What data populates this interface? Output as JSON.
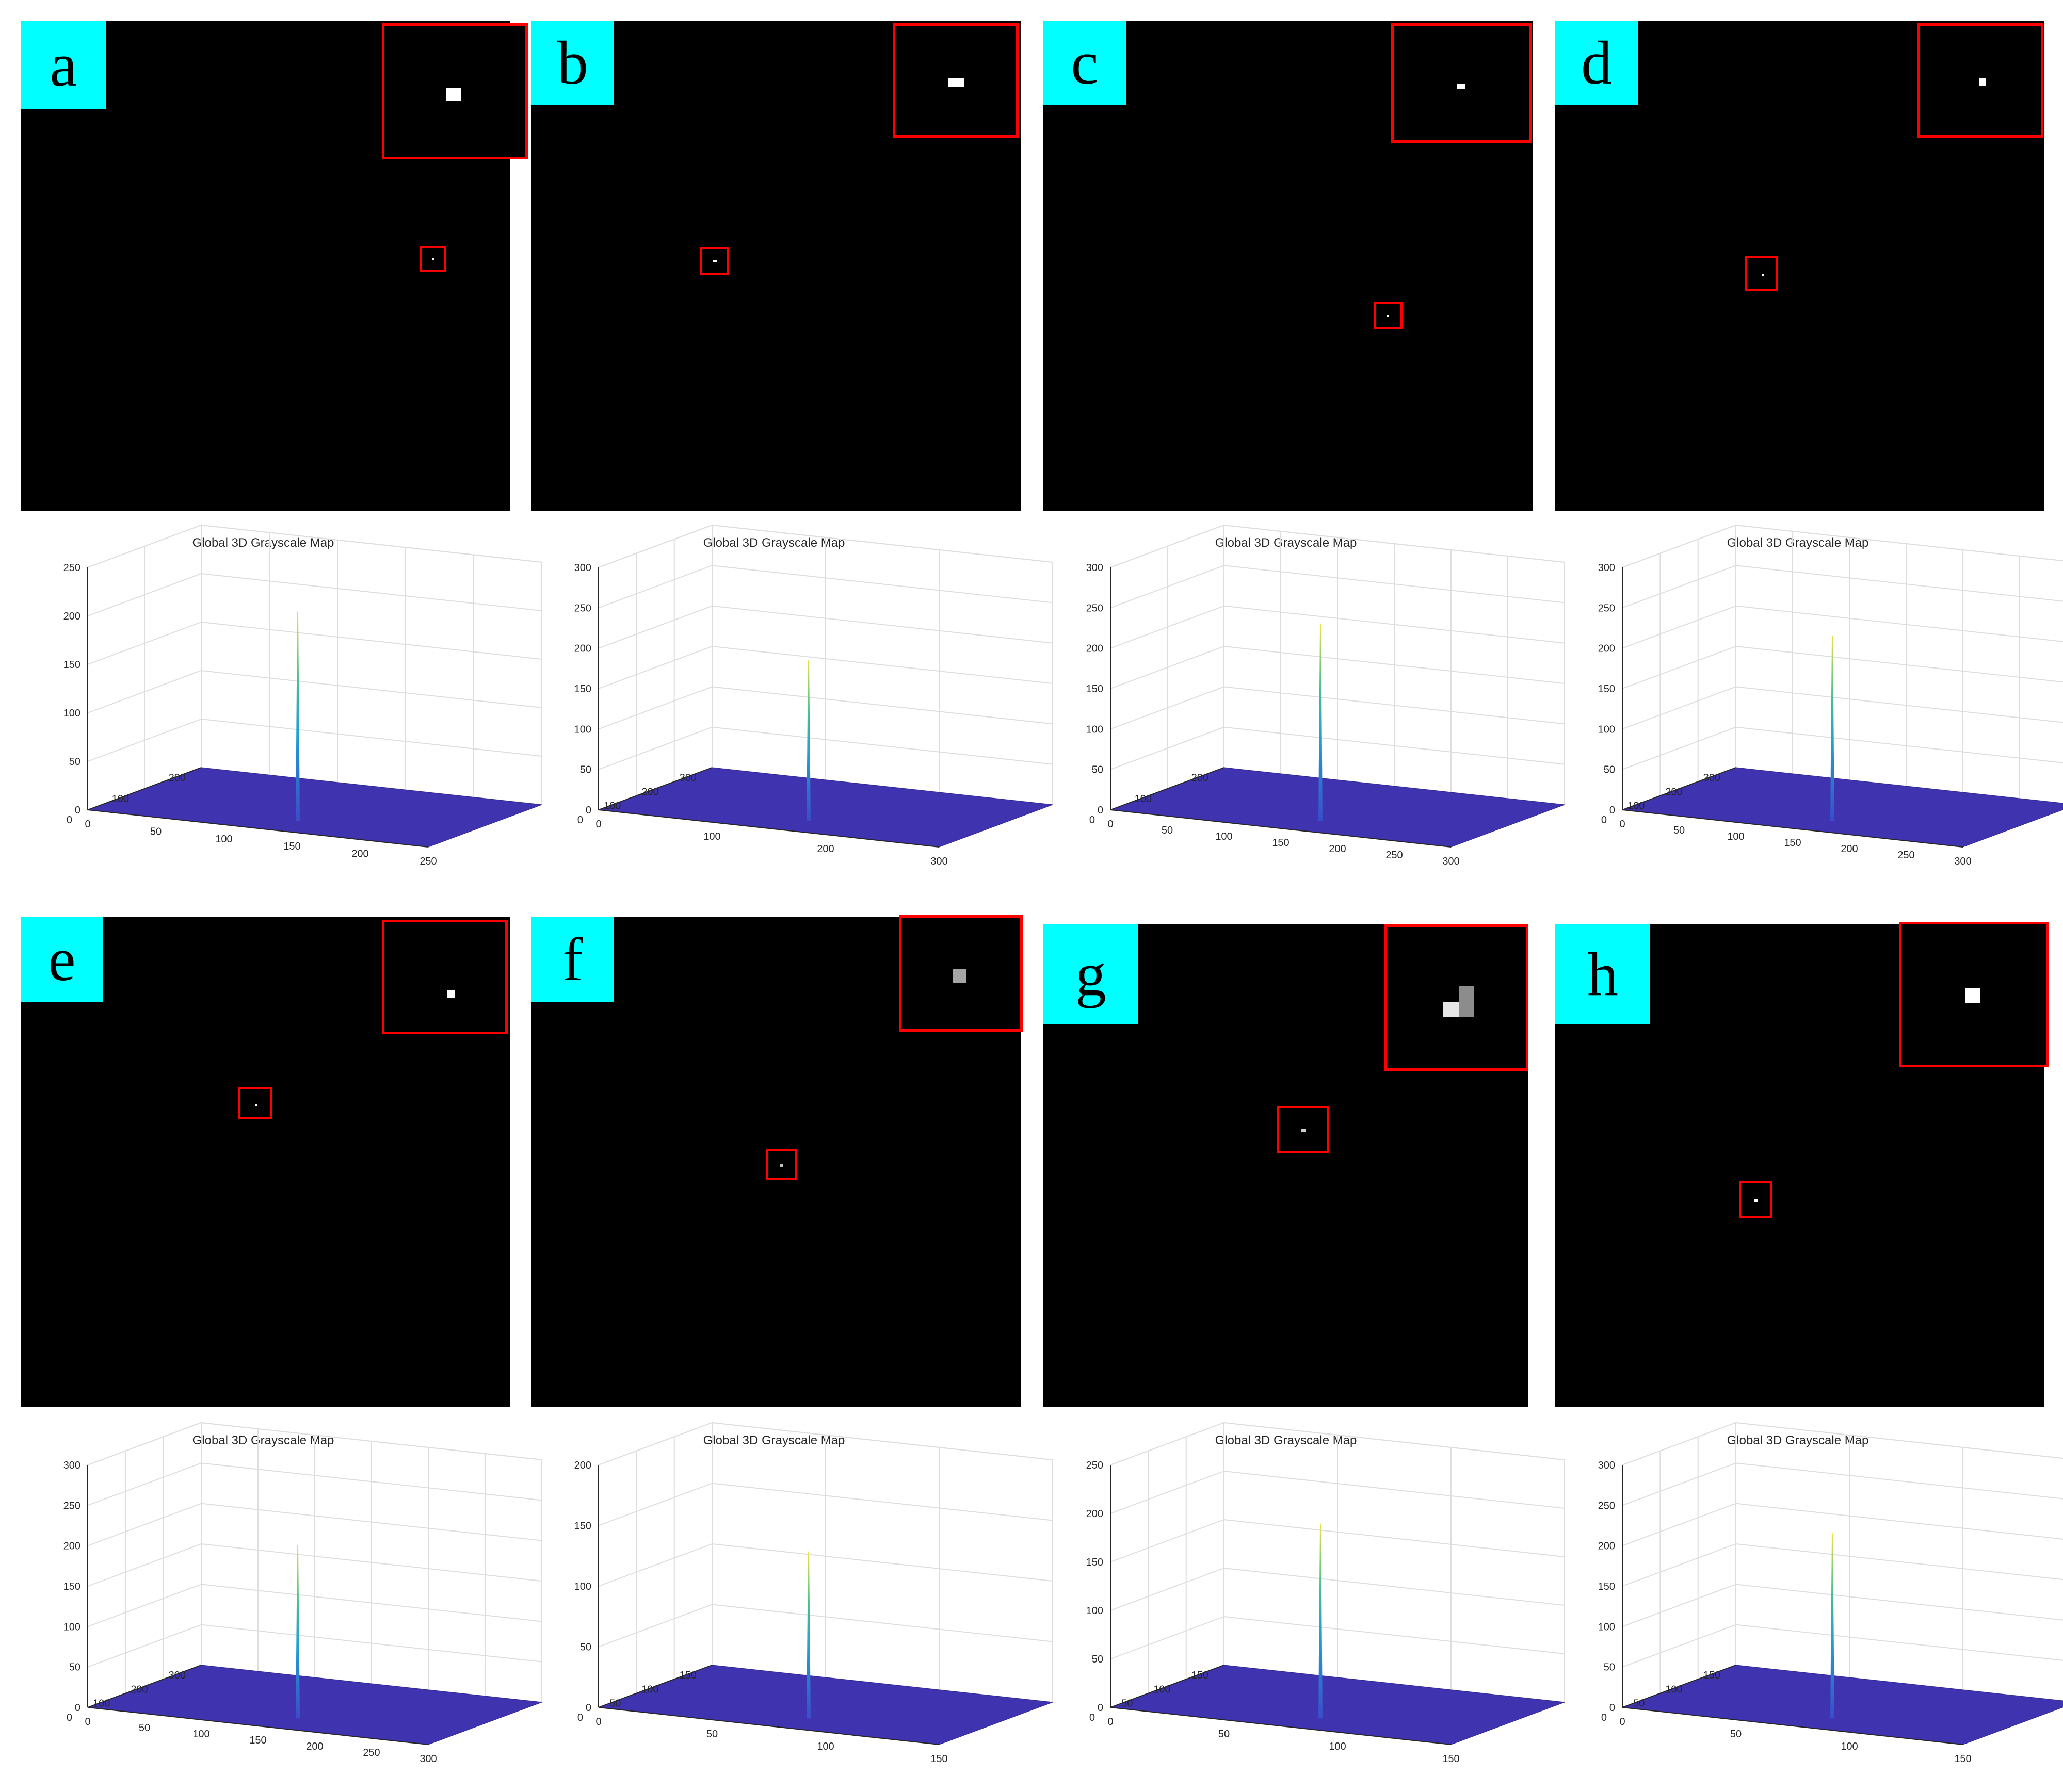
{
  "colors": {
    "label_bg": "#00ffff",
    "roi": "#ff0000",
    "surface": "#3f33b0",
    "background": "#000000"
  },
  "surface_title": "Global 3D Grayscale Map",
  "chart_data": [
    {
      "label": "a",
      "type": "surface",
      "title": "Global 3D Grayscale Map",
      "peak": 200,
      "zlim": [
        0,
        250
      ],
      "z_ticks": [
        "0",
        "50",
        "100",
        "150",
        "200",
        "250"
      ],
      "x_ticks": [
        "0",
        "50",
        "100",
        "150",
        "200",
        "250"
      ],
      "y_ticks": [
        "0",
        "100",
        "200"
      ]
    },
    {
      "label": "b",
      "type": "surface",
      "title": "Global 3D Grayscale Map",
      "peak": 180,
      "zlim": [
        0,
        300
      ],
      "z_ticks": [
        "0",
        "50",
        "100",
        "150",
        "200",
        "250",
        "300"
      ],
      "x_ticks": [
        "0",
        "100",
        "200",
        "300"
      ],
      "y_ticks": [
        "0",
        "100",
        "200",
        "300"
      ]
    },
    {
      "label": "c",
      "type": "surface",
      "title": "Global 3D Grayscale Map",
      "peak": 225,
      "zlim": [
        0,
        300
      ],
      "z_ticks": [
        "0",
        "50",
        "100",
        "150",
        "200",
        "250",
        "300"
      ],
      "x_ticks": [
        "0",
        "50",
        "100",
        "150",
        "200",
        "250",
        "300"
      ],
      "y_ticks": [
        "0",
        "100",
        "200"
      ]
    },
    {
      "label": "d",
      "type": "surface",
      "title": "Global 3D Grayscale Map",
      "peak": 210,
      "zlim": [
        0,
        300
      ],
      "z_ticks": [
        "0",
        "50",
        "100",
        "150",
        "200",
        "250",
        "300"
      ],
      "x_ticks": [
        "0",
        "50",
        "100",
        "150",
        "200",
        "250",
        "300"
      ],
      "y_ticks": [
        "0",
        "100",
        "200",
        "300"
      ]
    },
    {
      "label": "e",
      "type": "surface",
      "title": "Global 3D Grayscale Map",
      "peak": 195,
      "zlim": [
        0,
        300
      ],
      "z_ticks": [
        "0",
        "50",
        "100",
        "150",
        "200",
        "250",
        "300"
      ],
      "x_ticks": [
        "0",
        "50",
        "100",
        "150",
        "200",
        "250",
        "300"
      ],
      "y_ticks": [
        "0",
        "100",
        "200",
        "300"
      ]
    },
    {
      "label": "f",
      "type": "surface",
      "title": "Global 3D Grayscale Map",
      "peak": 125,
      "zlim": [
        0,
        200
      ],
      "z_ticks": [
        "0",
        "50",
        "100",
        "150",
        "200"
      ],
      "x_ticks": [
        "0",
        "50",
        "100",
        "150"
      ],
      "y_ticks": [
        "0",
        "50",
        "100",
        "150"
      ]
    },
    {
      "label": "g",
      "type": "surface",
      "title": "Global 3D Grayscale Map",
      "peak": 185,
      "zlim": [
        0,
        250
      ],
      "z_ticks": [
        "0",
        "50",
        "100",
        "150",
        "200",
        "250"
      ],
      "x_ticks": [
        "0",
        "50",
        "100",
        "150"
      ],
      "y_ticks": [
        "0",
        "50",
        "100",
        "150"
      ]
    },
    {
      "label": "h",
      "type": "surface",
      "title": "Global 3D Grayscale Map",
      "peak": 210,
      "zlim": [
        0,
        300
      ],
      "z_ticks": [
        "0",
        "50",
        "100",
        "150",
        "200",
        "250",
        "300"
      ],
      "x_ticks": [
        "0",
        "50",
        "100",
        "150"
      ],
      "y_ticks": [
        "0",
        "50",
        "100",
        "150"
      ]
    }
  ]
}
